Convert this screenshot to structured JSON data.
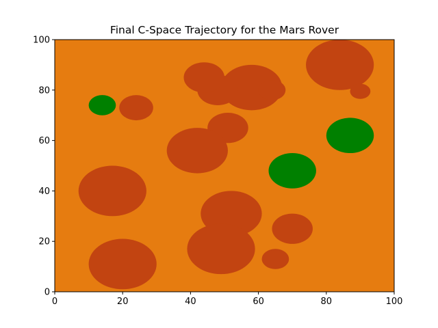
{
  "chart_data": {
    "type": "scatter",
    "title": "Final C-Space Trajectory for the Mars Rover",
    "xlabel": "",
    "ylabel": "",
    "xlim": [
      0,
      100
    ],
    "ylim": [
      0,
      100
    ],
    "x_ticks": [
      0,
      20,
      40,
      60,
      80,
      100
    ],
    "y_ticks": [
      0,
      20,
      40,
      60,
      80,
      100
    ],
    "grid": false,
    "colors": {
      "background": "#e67c10",
      "obstacle": "#c24411",
      "green": "#008000"
    },
    "obstacles": [
      {
        "x": 84,
        "y": 90,
        "r": 10
      },
      {
        "x": 58,
        "y": 81,
        "r": 9
      },
      {
        "x": 64,
        "y": 80,
        "r": 4
      },
      {
        "x": 48,
        "y": 80,
        "r": 6
      },
      {
        "x": 44,
        "y": 85,
        "r": 6
      },
      {
        "x": 90,
        "y": 79.5,
        "r": 3
      },
      {
        "x": 24,
        "y": 73,
        "r": 5
      },
      {
        "x": 51,
        "y": 65,
        "r": 6
      },
      {
        "x": 42,
        "y": 56,
        "r": 9
      },
      {
        "x": 17,
        "y": 40,
        "r": 10
      },
      {
        "x": 52,
        "y": 31,
        "r": 9
      },
      {
        "x": 70,
        "y": 25,
        "r": 6
      },
      {
        "x": 49,
        "y": 17,
        "r": 10
      },
      {
        "x": 65,
        "y": 13,
        "r": 4
      },
      {
        "x": 20,
        "y": 11,
        "r": 10
      }
    ],
    "green_regions": [
      {
        "x": 14,
        "y": 74,
        "r": 4
      },
      {
        "x": 87,
        "y": 62,
        "r": 7
      },
      {
        "x": 70,
        "y": 48,
        "r": 7
      }
    ]
  }
}
